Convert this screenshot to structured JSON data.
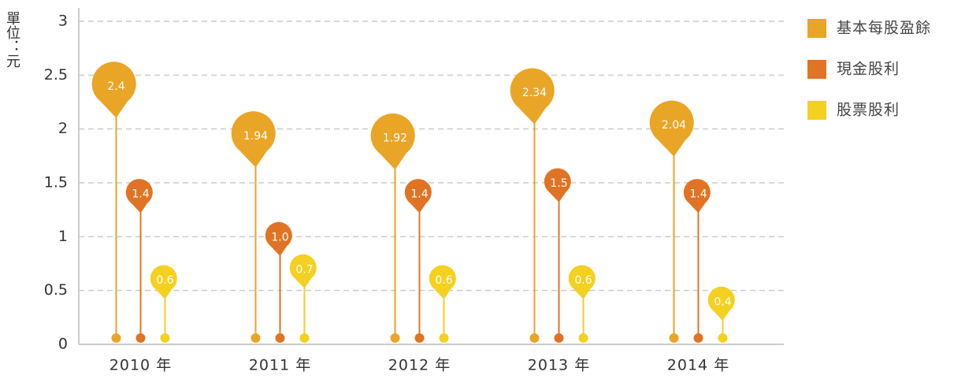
{
  "chart_data": {
    "type": "pin",
    "y_label": "單位：元",
    "categories": [
      "2010 年",
      "2011 年",
      "2012 年",
      "2013 年",
      "2014 年"
    ],
    "series": [
      {
        "name": "基本每股盈餘",
        "color": "#E9A526",
        "values": [
          2.4,
          1.94,
          1.92,
          2.34,
          2.04
        ],
        "value_labels": [
          "2.4",
          "1.94",
          "1.92",
          "2.34",
          "2.04"
        ]
      },
      {
        "name": "現金股利",
        "color": "#E07424",
        "values": [
          1.4,
          1.0,
          1.4,
          1.5,
          1.4
        ],
        "value_labels": [
          "1.4",
          "1.0",
          "1.4",
          "1.5",
          "1.4"
        ]
      },
      {
        "name": "股票股利",
        "color": "#F4D020",
        "values": [
          0.6,
          0.7,
          0.6,
          0.6,
          0.4
        ],
        "value_labels": [
          "0.6",
          "0.7",
          "0.6",
          "0.6",
          "0.4"
        ]
      }
    ],
    "ylim": [
      0,
      3
    ],
    "yticks": [
      0,
      0.5,
      1,
      1.5,
      2,
      2.5,
      3
    ],
    "grid": true
  }
}
